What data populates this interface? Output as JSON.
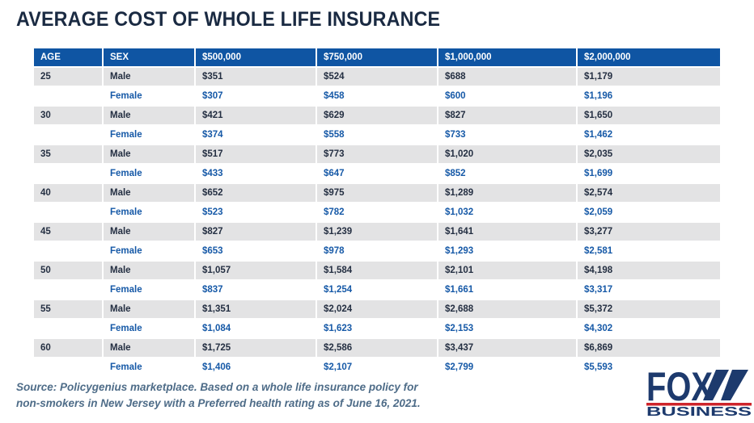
{
  "page": {
    "title": "AVERAGE COST OF WHOLE LIFE INSURANCE"
  },
  "chart_data": {
    "type": "table",
    "title": "AVERAGE COST OF WHOLE LIFE INSURANCE",
    "columns": [
      "AGE",
      "SEX",
      "$500,000",
      "$750,000",
      "$1,000,000",
      "$2,000,000"
    ],
    "rows": [
      [
        "25",
        "Male",
        "$351",
        "$524",
        "$688",
        "$1,179"
      ],
      [
        "",
        "Female",
        "$307",
        "$458",
        "$600",
        "$1,196"
      ],
      [
        "30",
        "Male",
        "$421",
        "$629",
        "$827",
        "$1,650"
      ],
      [
        "",
        "Female",
        "$374",
        "$558",
        "$733",
        "$1,462"
      ],
      [
        "35",
        "Male",
        "$517",
        "$773",
        "$1,020",
        "$2,035"
      ],
      [
        "",
        "Female",
        "$433",
        "$647",
        "$852",
        "$1,699"
      ],
      [
        "40",
        "Male",
        "$652",
        "$975",
        "$1,289",
        "$2,574"
      ],
      [
        "",
        "Female",
        "$523",
        "$782",
        "$1,032",
        "$2,059"
      ],
      [
        "45",
        "Male",
        "$827",
        "$1,239",
        "$1,641",
        "$3,277"
      ],
      [
        "",
        "Female",
        "$653",
        "$978",
        "$1,293",
        "$2,581"
      ],
      [
        "50",
        "Male",
        "$1,057",
        "$1,584",
        "$2,101",
        "$4,198"
      ],
      [
        "",
        "Female",
        "$837",
        "$1,254",
        "$1,661",
        "$3,317"
      ],
      [
        "55",
        "Male",
        "$1,351",
        "$2,024",
        "$2,688",
        "$5,372"
      ],
      [
        "",
        "Female",
        "$1,084",
        "$1,623",
        "$2,153",
        "$4,302"
      ],
      [
        "60",
        "Male",
        "$1,725",
        "$2,586",
        "$3,437",
        "$6,869"
      ],
      [
        "",
        "Female",
        "$1,406",
        "$2,107",
        "$2,799",
        "$5,593"
      ]
    ],
    "row_groups": "rows alternate Male (gray background, dark text) / Female (white background, blue text)"
  },
  "source": {
    "line1": "Source: Policygenius marketplace. Based on a whole life insurance policy for",
    "line2": "non-smokers in New Jersey with a Preferred health rating as of June 16, 2021."
  },
  "logo": {
    "brand": "FOX",
    "sub": "BUSINESS"
  },
  "colors": {
    "header_blue": "#0F55A3",
    "male_row_bg": "#E3E3E4",
    "male_text": "#242F42",
    "female_text": "#1659A7",
    "title_text": "#1A2A42",
    "source_text": "#4E6C88",
    "logo_navy": "#1D3A6D",
    "logo_red": "#CE242B"
  }
}
